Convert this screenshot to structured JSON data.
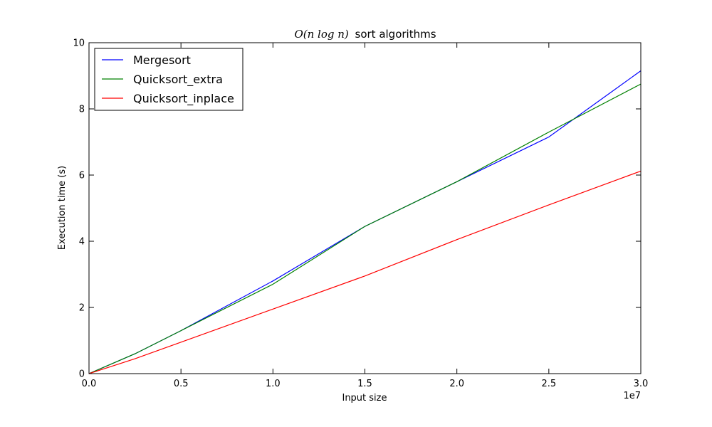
{
  "chart_data": {
    "type": "line",
    "title_math": "O(n log n)",
    "title_text": "sort algorithms",
    "xlabel": "Input size",
    "ylabel": "Execution time (s)",
    "x_offset_label": "1e7",
    "xlim": [
      0,
      30000000
    ],
    "ylim": [
      0,
      10
    ],
    "x_tick_values": [
      0,
      5000000,
      10000000,
      15000000,
      20000000,
      25000000,
      30000000
    ],
    "x_tick_labels": [
      "0.0",
      "0.5",
      "1.0",
      "1.5",
      "2.0",
      "2.5",
      "3.0"
    ],
    "y_tick_values": [
      0,
      2,
      4,
      6,
      8,
      10
    ],
    "y_tick_labels": [
      "0",
      "2",
      "4",
      "6",
      "8",
      "10"
    ],
    "grid": false,
    "legend_position": "top-left",
    "series": [
      {
        "name": "Mergesort",
        "color": "#0000ff",
        "x": [
          0,
          2500000,
          5000000,
          10000000,
          15000000,
          20000000,
          25000000,
          30000000
        ],
        "y": [
          0,
          0.6,
          1.3,
          2.8,
          4.45,
          5.8,
          7.15,
          9.15
        ]
      },
      {
        "name": "Quicksort_extra",
        "color": "#008000",
        "x": [
          0,
          2500000,
          5000000,
          10000000,
          15000000,
          20000000,
          25000000,
          30000000
        ],
        "y": [
          0,
          0.6,
          1.3,
          2.7,
          4.45,
          5.8,
          7.3,
          8.75
        ]
      },
      {
        "name": "Quicksort_inplace",
        "color": "#ff0000",
        "x": [
          0,
          2500000,
          5000000,
          10000000,
          15000000,
          20000000,
          25000000,
          30000000
        ],
        "y": [
          0,
          0.45,
          0.95,
          1.95,
          2.95,
          4.05,
          5.1,
          6.12
        ]
      }
    ]
  }
}
